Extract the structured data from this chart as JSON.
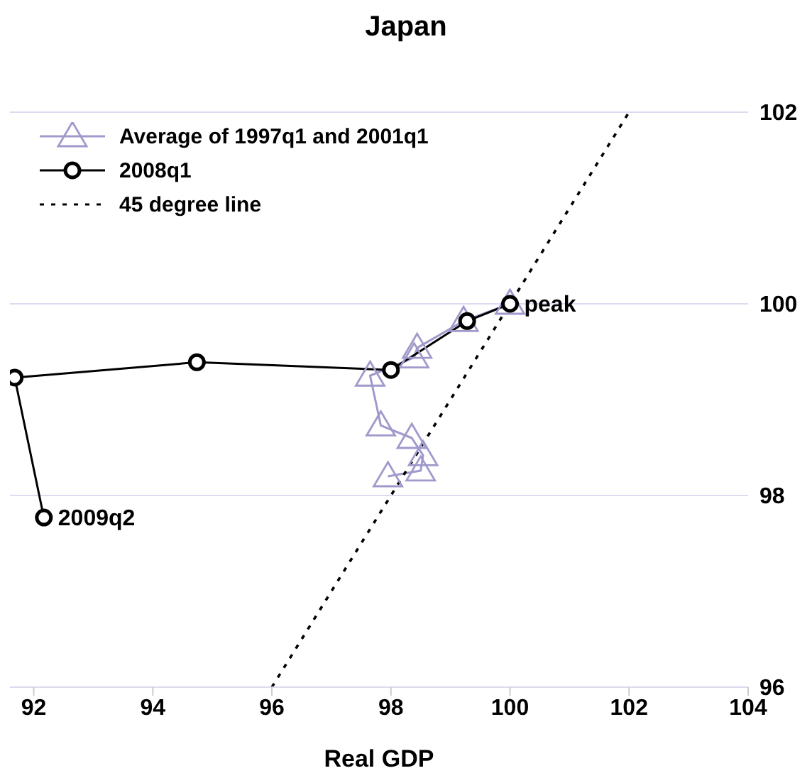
{
  "chart_data": {
    "type": "line",
    "title": "Japan",
    "xlabel": "Real GDP",
    "xlim": [
      91.6,
      104
    ],
    "xticks": [
      92,
      94,
      96,
      98,
      100,
      102,
      104
    ],
    "ylim": [
      96,
      102
    ],
    "yticks": [
      96,
      98,
      100,
      102
    ],
    "grid": "y",
    "legend": "top left",
    "line_style": "solid",
    "series": [
      {
        "name": "Average of 1997q1 and 2001q1",
        "color": "#9f9acb",
        "marker": "triangle",
        "x": [
          100,
          99.22,
          98.44,
          98.39,
          97.65,
          97.83,
          98.35,
          98.54,
          98.5,
          97.95
        ],
        "values": [
          100,
          99.82,
          99.54,
          99.44,
          99.25,
          98.73,
          98.6,
          98.42,
          98.26,
          98.2
        ]
      },
      {
        "name": "2008q1",
        "color": "#000000",
        "marker": "circle",
        "x": [
          100,
          99.28,
          98.0,
          94.74,
          91.68,
          92.17
        ],
        "values": [
          100,
          99.82,
          99.31,
          99.39,
          99.23,
          97.77
        ]
      },
      {
        "name": "45 degree line",
        "color": "#000000",
        "marker": "none",
        "line_style": "dotted",
        "x": [
          96,
          102
        ],
        "values": [
          96,
          102
        ]
      }
    ],
    "annotations": [
      {
        "text": "peak",
        "x": 100,
        "y": 100
      },
      {
        "text": "2009q2",
        "x": 92.17,
        "y": 97.77
      }
    ]
  }
}
